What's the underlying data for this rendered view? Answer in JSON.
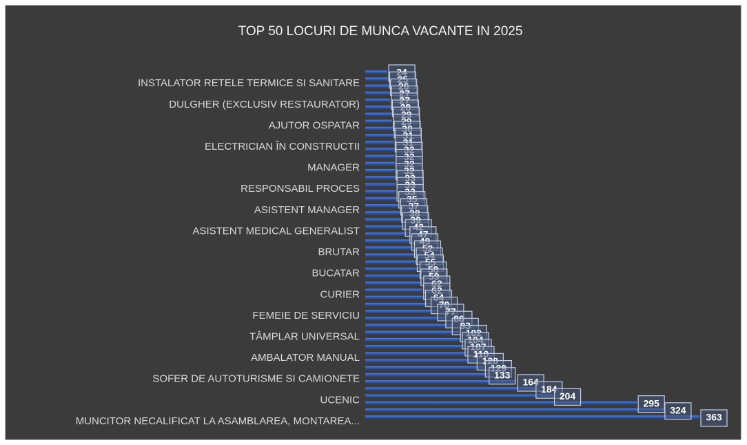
{
  "chart_data": {
    "type": "bar",
    "orientation": "horizontal",
    "title": "TOP  50 LOCURI DE MUNCA VACANTE IN 2025",
    "color": "#2f55a4",
    "categories": [
      null,
      "INSTALATOR RETELE TERMICE SI SANITARE",
      null,
      null,
      "DULGHER (EXCLUSIV RESTAURATOR)",
      null,
      null,
      "AJUTOR OSPATAR",
      null,
      null,
      "ELECTRICIAN ÎN CONSTRUCTII",
      null,
      null,
      "MANAGER",
      null,
      null,
      "RESPONSABIL PROCES",
      null,
      null,
      "ASISTENT MANAGER",
      null,
      null,
      "ASISTENT MEDICAL GENERALIST",
      null,
      null,
      "BRUTAR",
      null,
      null,
      "BUCATAR",
      null,
      null,
      "CURIER",
      null,
      null,
      "FEMEIE DE SERVICIU",
      null,
      null,
      "TÂMPLAR UNIVERSAL",
      null,
      null,
      "AMBALATOR MANUAL",
      null,
      null,
      "SOFER DE AUTOTURISME SI CAMIONETE",
      null,
      null,
      "UCENIC",
      null,
      null,
      "MUNCITOR NECALIFICAT LA ASAMBLAREA, MONTAREA..."
    ],
    "values": [
      24,
      25,
      26,
      27,
      27,
      28,
      29,
      29,
      30,
      31,
      31,
      32,
      32,
      32,
      32,
      33,
      33,
      33,
      35,
      37,
      38,
      39,
      42,
      47,
      49,
      52,
      54,
      55,
      58,
      59,
      62,
      62,
      64,
      70,
      77,
      86,
      93,
      102,
      104,
      107,
      110,
      120,
      129,
      133,
      164,
      184,
      204,
      295,
      324,
      363
    ]
  }
}
